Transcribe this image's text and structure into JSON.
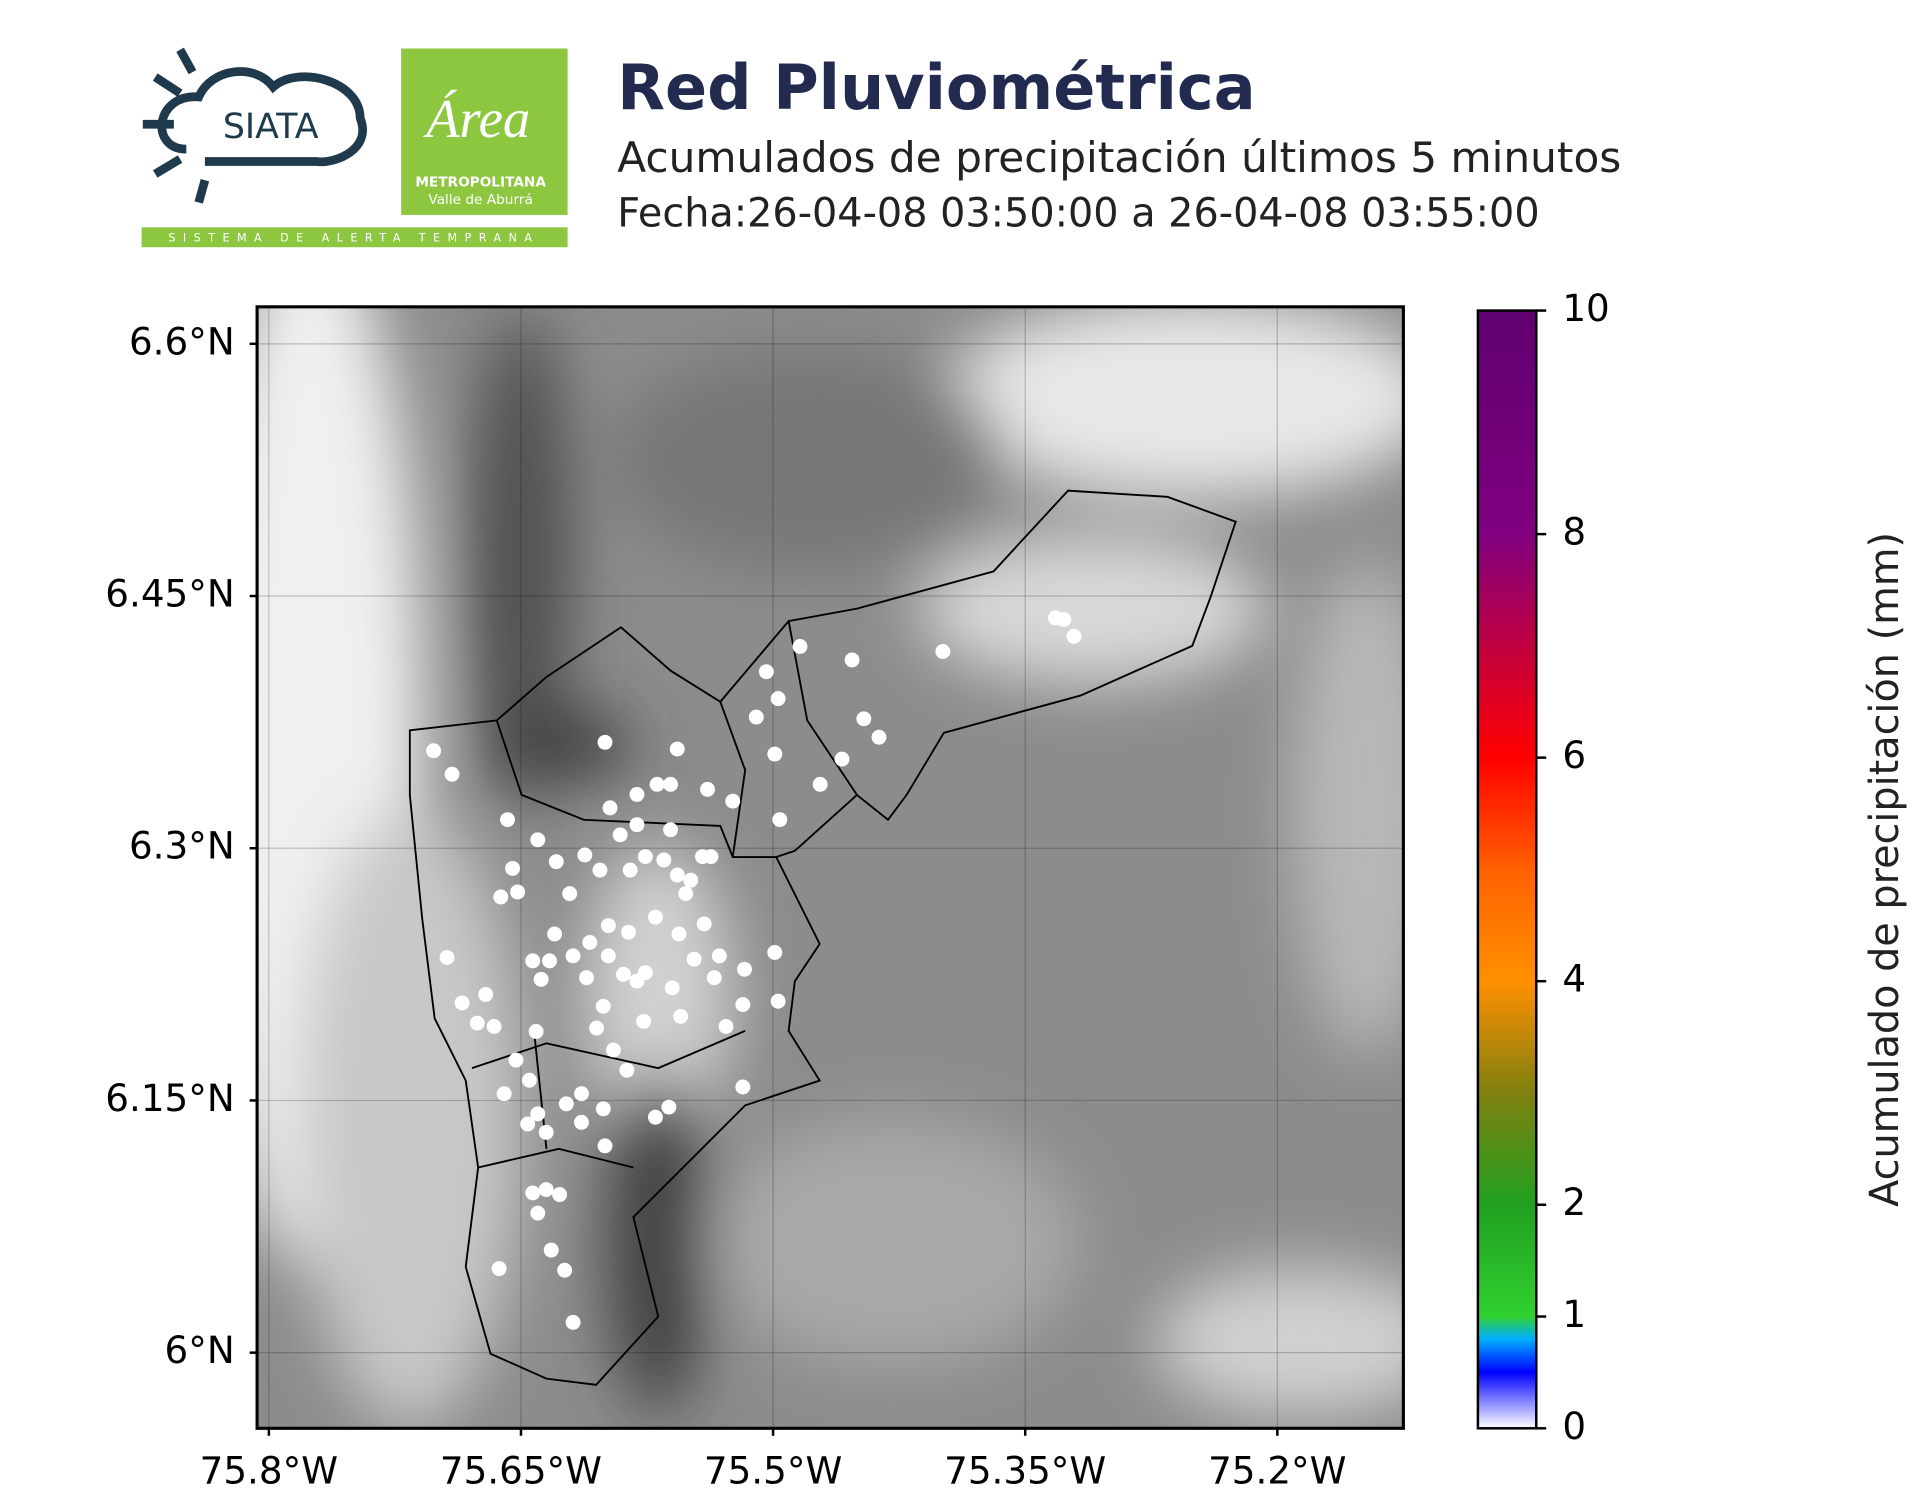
{
  "logos": {
    "siata": "SIATA",
    "area": "Área",
    "metro": "METROPOLITANA",
    "valle": "Valle de Aburrá",
    "sistema": "SISTEMA DE ALERTA TEMPRANA"
  },
  "chart_data": {
    "type": "scatter",
    "title": "Red Pluviométrica",
    "subtitle": "Acumulados de precipitación últimos 5 minutos",
    "date": "Fecha:26-04-08 03:50:00 a 26-04-08 03:55:00",
    "color": "#ffffff",
    "x": [
      -75.702,
      -75.691,
      -75.6,
      -75.557,
      -75.658,
      -75.64,
      -75.612,
      -75.629,
      -75.597,
      -75.581,
      -75.569,
      -75.561,
      -75.539,
      -75.524,
      -75.504,
      -75.51,
      -75.497,
      -75.484,
      -75.453,
      -75.446,
      -75.437,
      -75.459,
      -75.472,
      -75.499,
      -75.496,
      -75.399,
      -75.332,
      -75.327,
      -75.321,
      -75.655,
      -75.662,
      -75.652,
      -75.694,
      -75.685,
      -75.676,
      -75.666,
      -75.671,
      -75.643,
      -75.633,
      -75.638,
      -75.63,
      -75.609,
      -75.598,
      -75.586,
      -75.57,
      -75.556,
      -75.541,
      -75.532,
      -75.517,
      -75.499,
      -75.497,
      -75.518,
      -75.535,
      -75.547,
      -75.56,
      -75.576,
      -75.589,
      -75.601,
      -75.611,
      -75.619,
      -75.585,
      -75.576,
      -75.565,
      -75.557,
      -75.549,
      -75.542,
      -75.561,
      -75.581,
      -75.591,
      -75.603,
      -75.621,
      -75.641,
      -75.653,
      -75.645,
      -75.66,
      -75.64,
      -75.646,
      -75.635,
      -75.623,
      -75.614,
      -75.601,
      -75.614,
      -75.6,
      -75.587,
      -75.57,
      -75.562,
      -75.518,
      -75.528,
      -75.555,
      -75.577,
      -75.605,
      -75.595,
      -75.643,
      -75.635,
      -75.627,
      -75.64,
      -75.632,
      -75.624,
      -75.663,
      -75.619,
      -75.598,
      -75.581,
      -75.552,
      -75.537
    ],
    "y": [
      6.358,
      6.344,
      6.363,
      6.359,
      6.317,
      6.305,
      6.296,
      6.292,
      6.324,
      6.332,
      6.338,
      6.338,
      6.335,
      6.328,
      6.405,
      6.378,
      6.389,
      6.42,
      6.412,
      6.377,
      6.366,
      6.353,
      6.338,
      6.356,
      6.317,
      6.417,
      6.437,
      6.436,
      6.426,
      6.288,
      6.271,
      6.274,
      6.235,
      6.208,
      6.196,
      6.194,
      6.213,
      6.233,
      6.233,
      6.222,
      6.249,
      6.244,
      6.254,
      6.25,
      6.259,
      6.249,
      6.255,
      6.236,
      6.228,
      6.238,
      6.209,
      6.207,
      6.223,
      6.234,
      6.217,
      6.226,
      6.225,
      6.206,
      6.223,
      6.236,
      6.287,
      6.295,
      6.293,
      6.284,
      6.281,
      6.295,
      6.311,
      6.314,
      6.308,
      6.287,
      6.273,
      6.191,
      6.174,
      6.162,
      6.154,
      6.142,
      6.136,
      6.131,
      6.148,
      6.137,
      6.145,
      6.154,
      6.123,
      6.168,
      6.14,
      6.146,
      6.158,
      6.194,
      6.2,
      6.197,
      6.193,
      6.18,
      6.095,
      6.097,
      6.094,
      6.083,
      6.061,
      6.049,
      6.05,
      6.018,
      6.236,
      6.221,
      6.273,
      6.295
    ],
    "xlim": [
      -75.807,
      -75.125
    ],
    "ylim": [
      5.955,
      6.622
    ],
    "xticks": [
      {
        "value": -75.8,
        "label": "75.8°W"
      },
      {
        "value": -75.65,
        "label": "75.65°W"
      },
      {
        "value": -75.5,
        "label": "75.5°W"
      },
      {
        "value": -75.35,
        "label": "75.35°W"
      },
      {
        "value": -75.2,
        "label": "75.2°W"
      }
    ],
    "yticks": [
      {
        "value": 6.0,
        "label": "6°N"
      },
      {
        "value": 6.15,
        "label": "6.15°N"
      },
      {
        "value": 6.3,
        "label": "6.3°N"
      },
      {
        "value": 6.45,
        "label": "6.45°N"
      },
      {
        "value": 6.6,
        "label": "6.6°N"
      }
    ],
    "grid": true,
    "colorbar": {
      "label": "Acumulado de precipitación (mm)",
      "lim": [
        0,
        10
      ],
      "ticks": [
        0,
        1,
        2,
        4,
        6,
        8,
        10
      ],
      "colormap": [
        [
          0,
          "#ffffff"
        ],
        [
          0.5,
          "#0000ff"
        ],
        [
          0.8,
          "#00b0ff"
        ],
        [
          1,
          "#30d030"
        ],
        [
          2,
          "#20a020"
        ],
        [
          3,
          "#808010"
        ],
        [
          4,
          "#ff9000"
        ],
        [
          5,
          "#ff6000"
        ],
        [
          6,
          "#ff0000"
        ],
        [
          7,
          "#c00040"
        ],
        [
          8,
          "#800080"
        ],
        [
          10,
          "#600070"
        ]
      ]
    }
  }
}
